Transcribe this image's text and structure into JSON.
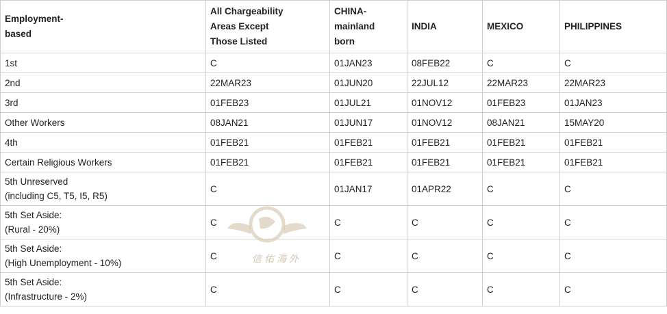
{
  "table": {
    "header": [
      "Employment-\nbased",
      "All Chargeability\nAreas Except\nThose Listed",
      "CHINA-\nmainland\nborn",
      "INDIA",
      "MEXICO",
      "PHILIPPINES"
    ],
    "rows": [
      [
        "1st",
        "C",
        "01JAN23",
        "08FEB22",
        "C",
        "C"
      ],
      [
        "2nd",
        "22MAR23",
        "01JUN20",
        "22JUL12",
        "22MAR23",
        "22MAR23"
      ],
      [
        "3rd",
        "01FEB23",
        "01JUL21",
        "01NOV12",
        "01FEB23",
        "01JAN23"
      ],
      [
        "Other Workers",
        "08JAN21",
        "01JUN17",
        "01NOV12",
        "08JAN21",
        "15MAY20"
      ],
      [
        "4th",
        "01FEB21",
        "01FEB21",
        "01FEB21",
        "01FEB21",
        "01FEB21"
      ],
      [
        "Certain Religious Workers",
        "01FEB21",
        "01FEB21",
        "01FEB21",
        "01FEB21",
        "01FEB21"
      ],
      [
        "5th Unreserved\n(including C5, T5, I5, R5)",
        "C",
        "01JAN17",
        "01APR22",
        "C",
        "C"
      ],
      [
        "5th Set Aside:\n(Rural - 20%)",
        "C",
        "C",
        "C",
        "C",
        "C"
      ],
      [
        "5th Set Aside:\n(High Unemployment - 10%)",
        "C",
        "C",
        "C",
        "C",
        "C"
      ],
      [
        "5th Set Aside:\n(Infrastructure - 2%)",
        "C",
        "C",
        "C",
        "C",
        "C"
      ]
    ]
  },
  "watermark": "信佑海外"
}
